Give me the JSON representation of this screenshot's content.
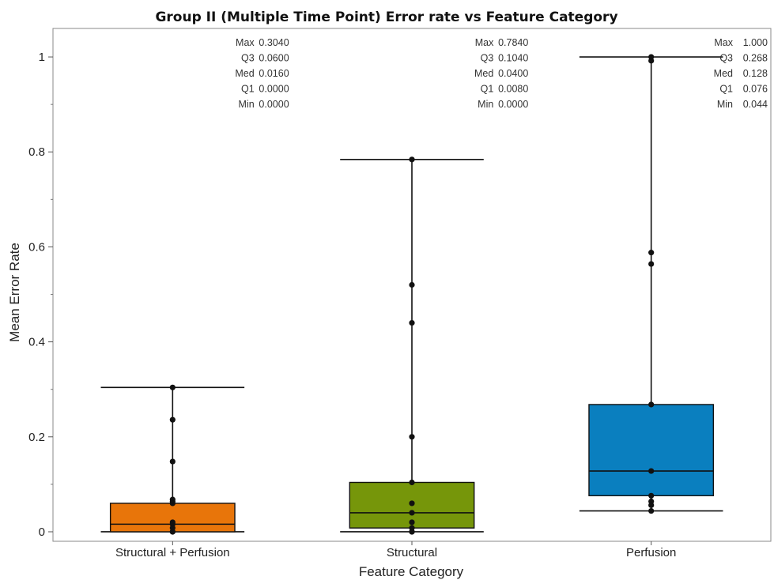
{
  "chart_data": {
    "type": "box",
    "title": "Group II (Multiple Time Point) Error rate vs Feature Category",
    "xlabel": "Feature Category",
    "ylabel": "Mean Error Rate",
    "ylim": [
      -0.02,
      1.06
    ],
    "yticks": [
      0,
      0.2,
      0.4,
      0.6,
      0.8,
      1
    ],
    "ytick_labels": [
      "0",
      "0.2",
      "0.4",
      "0.6",
      "0.8",
      "1"
    ],
    "grid": false,
    "categories": [
      "Structural + Perfusion",
      "Structural",
      "Perfusion"
    ],
    "boxes": [
      {
        "category": "Structural + Perfusion",
        "color": "#E8750A",
        "max": 0.304,
        "q3": 0.06,
        "median": 0.016,
        "q1": 0.0,
        "min": 0.0,
        "whisker_top": 0.304,
        "whisker_bottom": 0.0,
        "points": [
          0.304,
          0.236,
          0.148,
          0.068,
          0.064,
          0.06,
          0.02,
          0.016,
          0.008,
          0.0,
          0.0
        ],
        "stats": [
          {
            "label": "Max",
            "value": "0.3040"
          },
          {
            "label": "Q3",
            "value": "0.0600"
          },
          {
            "label": "Med",
            "value": "0.0160"
          },
          {
            "label": "Q1",
            "value": "0.0000"
          },
          {
            "label": "Min",
            "value": "0.0000"
          }
        ]
      },
      {
        "category": "Structural",
        "color": "#76960A",
        "max": 0.784,
        "q3": 0.104,
        "median": 0.04,
        "q1": 0.008,
        "min": 0.0,
        "whisker_top": 0.784,
        "whisker_bottom": 0.0,
        "points": [
          0.784,
          0.52,
          0.44,
          0.2,
          0.104,
          0.06,
          0.04,
          0.02,
          0.008,
          0.0,
          0.0
        ],
        "stats": [
          {
            "label": "Max",
            "value": "0.7840"
          },
          {
            "label": "Q3",
            "value": "0.1040"
          },
          {
            "label": "Med",
            "value": "0.0400"
          },
          {
            "label": "Q1",
            "value": "0.0080"
          },
          {
            "label": "Min",
            "value": "0.0000"
          }
        ]
      },
      {
        "category": "Perfusion",
        "color": "#0A7FBF",
        "max": 1.0,
        "q3": 0.268,
        "median": 0.128,
        "q1": 0.076,
        "min": 0.044,
        "whisker_top": 1.0,
        "whisker_bottom": 0.044,
        "points": [
          1.0,
          0.992,
          0.588,
          0.564,
          0.268,
          0.128,
          0.076,
          0.064,
          0.056,
          0.044
        ],
        "stats": [
          {
            "label": "Max",
            "value": "1.000"
          },
          {
            "label": "Q3",
            "value": "0.268"
          },
          {
            "label": "Med",
            "value": "0.128"
          },
          {
            "label": "Q1",
            "value": "0.076"
          },
          {
            "label": "Min",
            "value": "0.044"
          }
        ]
      }
    ]
  }
}
